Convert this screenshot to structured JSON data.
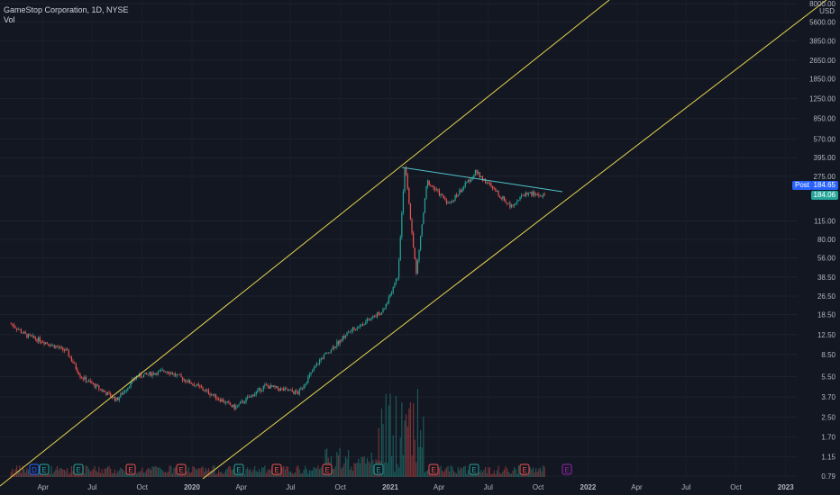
{
  "legend": {
    "symbol": "GameStop Corporation, 1D, NYSE",
    "volume_label": "Vol"
  },
  "price_axis": {
    "unit": "USD",
    "ticks": [
      "8000.00",
      "5600.00",
      "3850.00",
      "2650.00",
      "1850.00",
      "1250.00",
      "850.00",
      "570.00",
      "395.00",
      "275.00",
      "184.65",
      "115.00",
      "80.00",
      "56.00",
      "38.50",
      "26.50",
      "18.50",
      "12.50",
      "8.50",
      "5.50",
      "3.70",
      "2.50",
      "1.70",
      "1.15",
      "0.79"
    ],
    "post_label": "Post",
    "post_price": "184.65",
    "last_price": "184.06"
  },
  "time_axis": {
    "ticks": [
      "Apr",
      "Jul",
      "Oct",
      "2020",
      "Apr",
      "Jul",
      "Oct",
      "2021",
      "Apr",
      "Jul",
      "Oct",
      "2022",
      "Apr",
      "Jul",
      "Oct",
      "2023"
    ]
  },
  "colors": {
    "background": "#131722",
    "up": "#26a69a",
    "down": "#ef5350",
    "channel": "#e8d44d",
    "trendline": "#4fc3c7",
    "post_tag": "#2962ff",
    "last_tag": "#26a69a"
  },
  "chart_data": {
    "type": "line",
    "title": "GameStop Corporation, 1D, NYSE",
    "price_scale": "log",
    "ylim": [
      0.79,
      8000
    ],
    "approx_close": [
      {
        "date": "2019-02-01",
        "close": 15.5
      },
      {
        "date": "2019-03-01",
        "close": 12.3
      },
      {
        "date": "2019-04-01",
        "close": 11.0
      },
      {
        "date": "2019-05-15",
        "close": 9.0
      },
      {
        "date": "2019-06-10",
        "close": 5.5
      },
      {
        "date": "2019-08-15",
        "close": 3.5
      },
      {
        "date": "2019-09-20",
        "close": 5.5
      },
      {
        "date": "2019-11-15",
        "close": 6.2
      },
      {
        "date": "2020-01-10",
        "close": 4.6
      },
      {
        "date": "2020-03-20",
        "close": 3.0
      },
      {
        "date": "2020-05-15",
        "close": 4.6
      },
      {
        "date": "2020-07-15",
        "close": 4.0
      },
      {
        "date": "2020-08-25",
        "close": 7.7
      },
      {
        "date": "2020-10-15",
        "close": 13.0
      },
      {
        "date": "2020-12-20",
        "close": 20.0
      },
      {
        "date": "2021-01-15",
        "close": 40.0
      },
      {
        "date": "2021-01-28",
        "close": 347.0
      },
      {
        "date": "2021-02-18",
        "close": 40.6
      },
      {
        "date": "2021-03-10",
        "close": 250.0
      },
      {
        "date": "2021-04-20",
        "close": 160.0
      },
      {
        "date": "2021-06-08",
        "close": 300.0
      },
      {
        "date": "2021-08-10",
        "close": 155.0
      },
      {
        "date": "2021-09-10",
        "close": 200.0
      },
      {
        "date": "2021-10-15",
        "close": 184.06
      }
    ],
    "volume_events": [
      "D",
      "E",
      "E",
      "E",
      "E",
      "E",
      "E",
      "E",
      "E",
      "E",
      "E",
      "E"
    ]
  }
}
